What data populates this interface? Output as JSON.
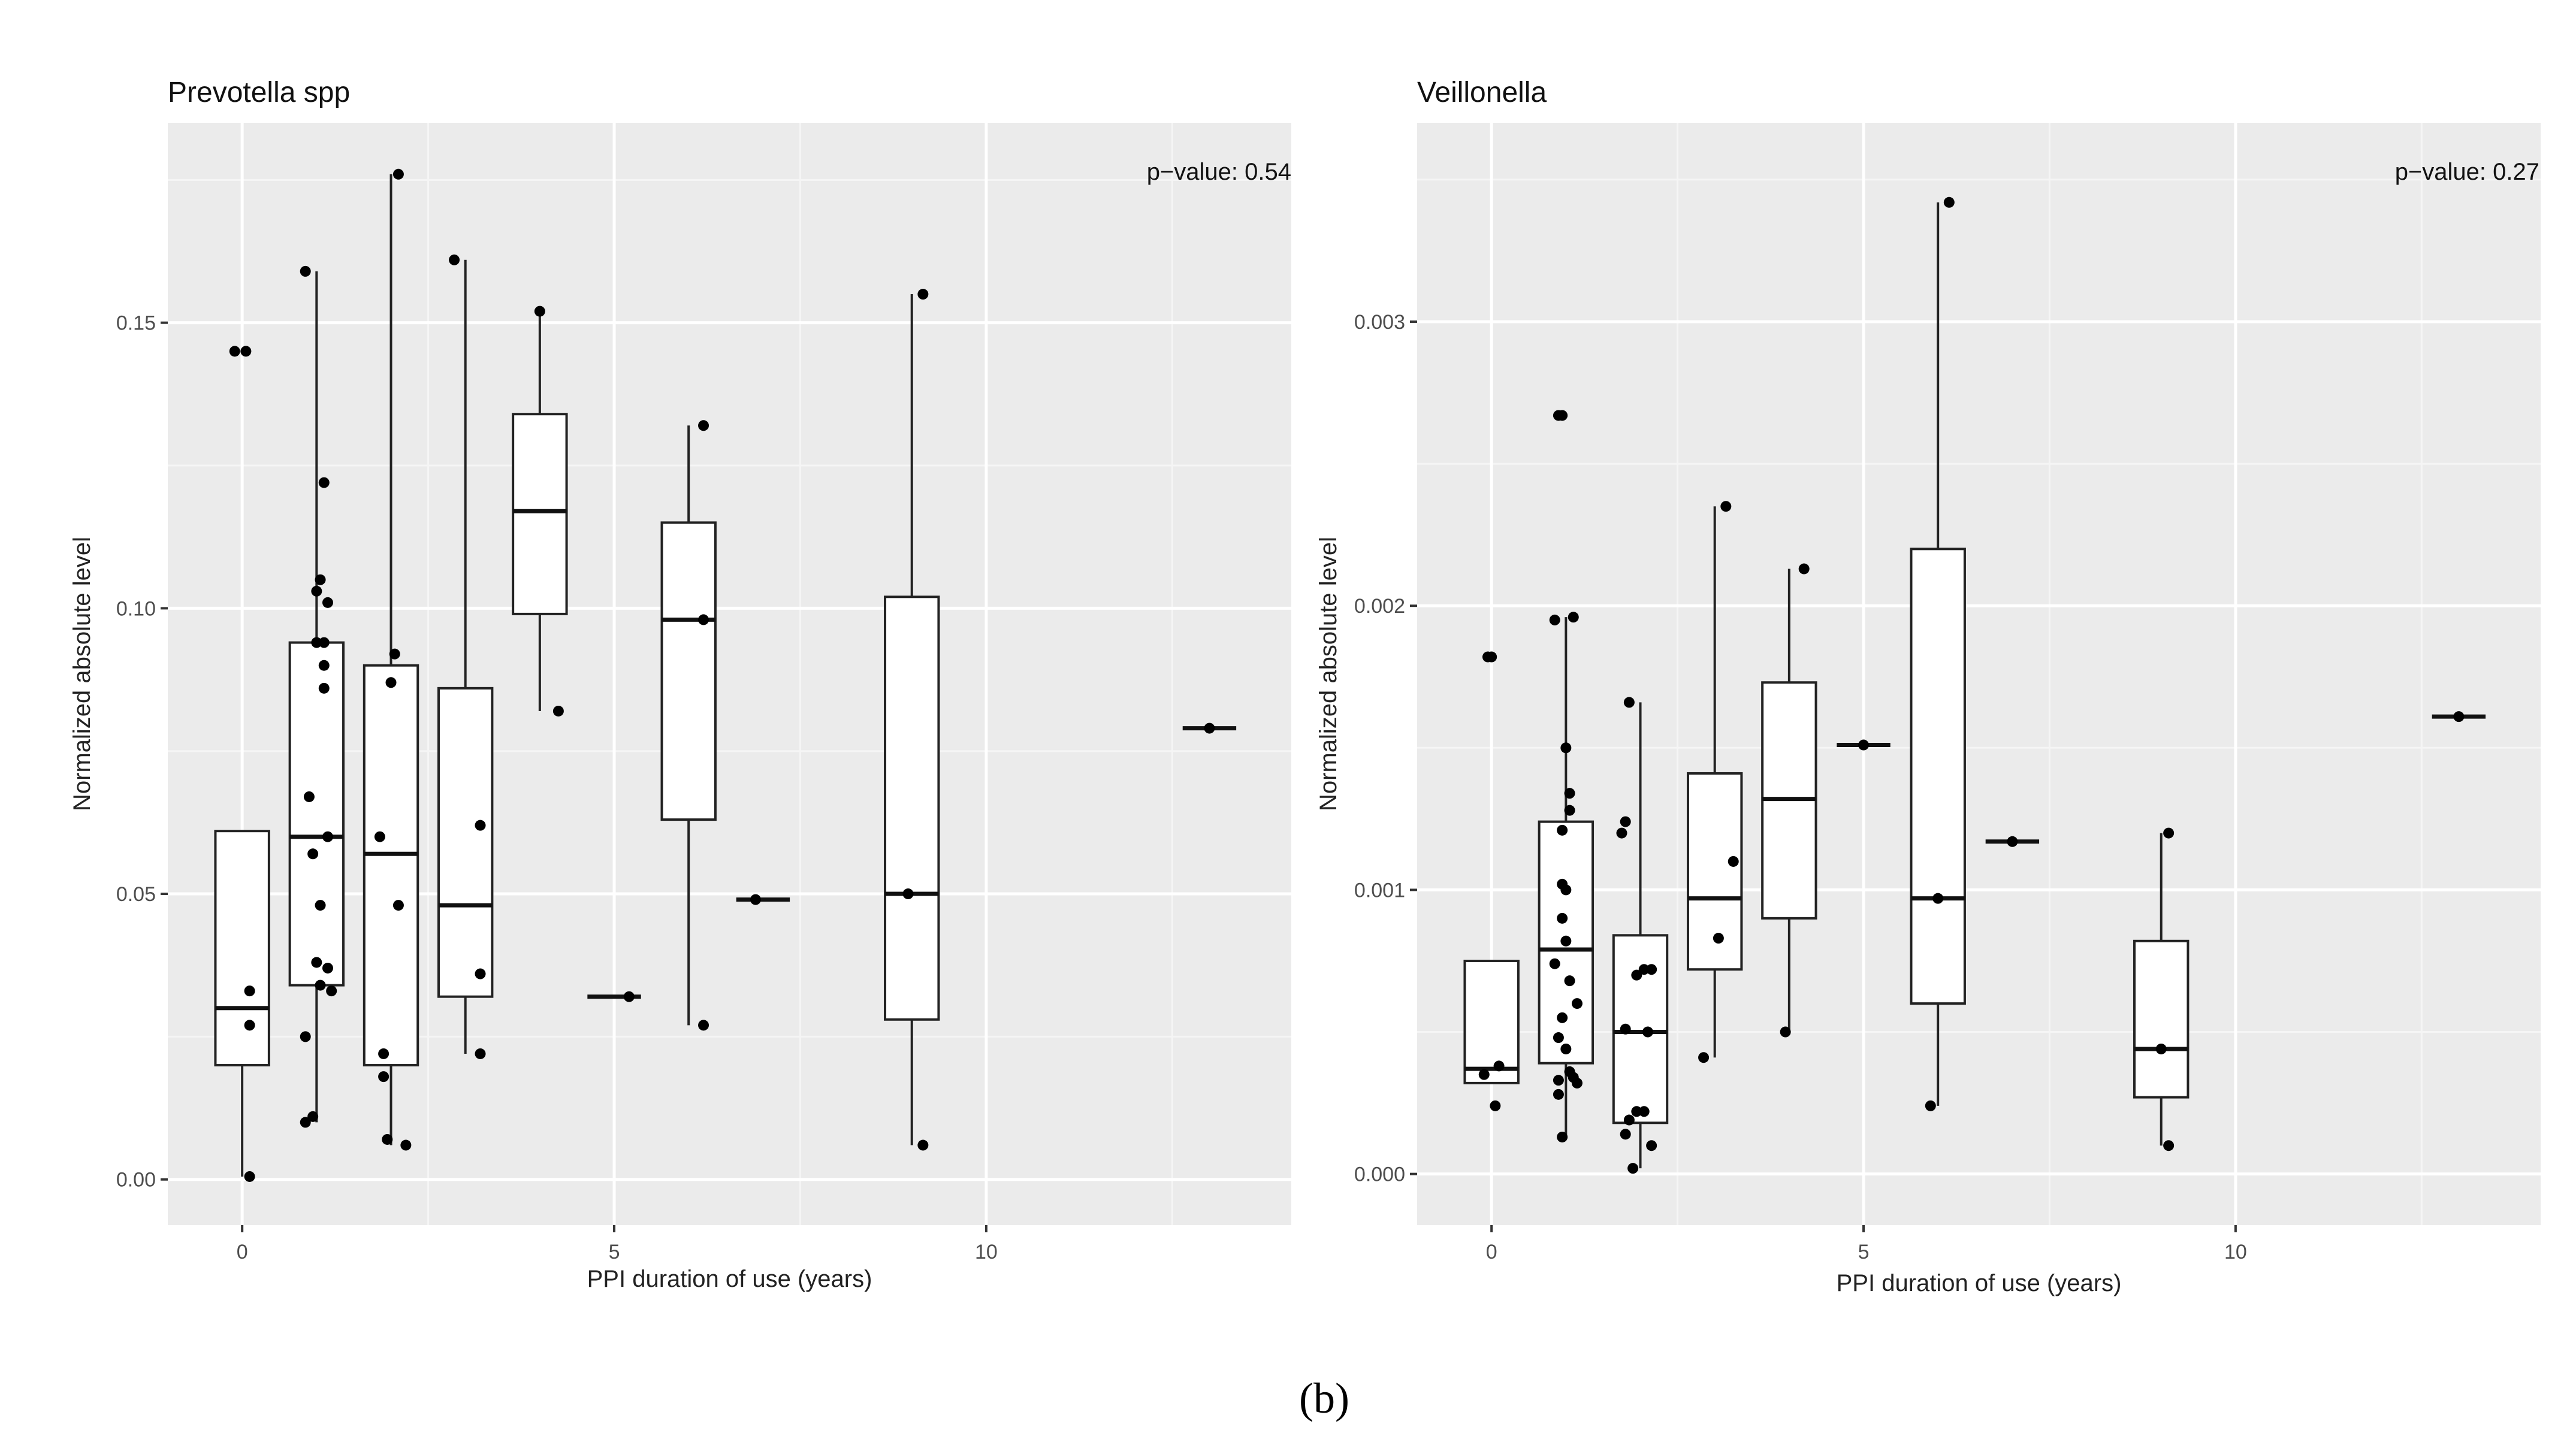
{
  "caption": "(b)",
  "chart_data": [
    {
      "type": "box",
      "title": "Prevotella spp",
      "xlabel": "PPI duration of use (years)",
      "ylabel": "Normalized absolute level",
      "annotation": "p−value:  0.54",
      "xlim": [
        -1,
        14.1
      ],
      "ylim": [
        -0.008,
        0.185
      ],
      "x_ticks": [
        0,
        5,
        10
      ],
      "x_tick_labels": [
        "0",
        "5",
        "10"
      ],
      "y_ticks": [
        0,
        0.05,
        0.1,
        0.15
      ],
      "y_tick_labels": [
        "0.00",
        "0.05",
        "0.10",
        "0.15"
      ],
      "boxes": [
        {
          "x": 0,
          "q1": 0.02,
          "median": 0.03,
          "q3": 0.061,
          "whisker_low": 0.0005,
          "whisker_high": 0.061
        },
        {
          "x": 1,
          "q1": 0.034,
          "median": 0.06,
          "q3": 0.094,
          "whisker_low": 0.01,
          "whisker_high": 0.159
        },
        {
          "x": 2,
          "q1": 0.02,
          "median": 0.057,
          "q3": 0.09,
          "whisker_low": 0.006,
          "whisker_high": 0.176
        },
        {
          "x": 3,
          "q1": 0.032,
          "median": 0.048,
          "q3": 0.086,
          "whisker_low": 0.022,
          "whisker_high": 0.161
        },
        {
          "x": 4,
          "q1": 0.099,
          "median": 0.117,
          "q3": 0.134,
          "whisker_low": 0.082,
          "whisker_high": 0.152
        },
        {
          "x": 5,
          "q1": 0.032,
          "median": 0.032,
          "q3": 0.032,
          "whisker_low": 0.032,
          "whisker_high": 0.032
        },
        {
          "x": 6,
          "q1": 0.063,
          "median": 0.098,
          "q3": 0.115,
          "whisker_low": 0.027,
          "whisker_high": 0.132
        },
        {
          "x": 7,
          "q1": 0.049,
          "median": 0.049,
          "q3": 0.049,
          "whisker_low": 0.049,
          "whisker_high": 0.049
        },
        {
          "x": 9,
          "q1": 0.028,
          "median": 0.05,
          "q3": 0.102,
          "whisker_low": 0.006,
          "whisker_high": 0.155
        },
        {
          "x": 13,
          "q1": 0.079,
          "median": 0.079,
          "q3": 0.079,
          "whisker_low": 0.079,
          "whisker_high": 0.079
        }
      ],
      "points": [
        [
          -0.1,
          0.145
        ],
        [
          0.05,
          0.145
        ],
        [
          0.1,
          0.033
        ],
        [
          0.1,
          0.027
        ],
        [
          0.1,
          0.0005
        ],
        [
          0.85,
          0.159
        ],
        [
          0.85,
          0.025
        ],
        [
          0.85,
          0.01
        ],
        [
          0.9,
          0.067
        ],
        [
          0.95,
          0.057
        ],
        [
          0.95,
          0.011
        ],
        [
          1.0,
          0.103
        ],
        [
          1.0,
          0.094
        ],
        [
          1.0,
          0.038
        ],
        [
          1.05,
          0.105
        ],
        [
          1.05,
          0.048
        ],
        [
          1.05,
          0.034
        ],
        [
          1.1,
          0.122
        ],
        [
          1.1,
          0.094
        ],
        [
          1.1,
          0.09
        ],
        [
          1.1,
          0.086
        ],
        [
          1.15,
          0.101
        ],
        [
          1.15,
          0.037
        ],
        [
          1.15,
          0.06
        ],
        [
          1.2,
          0.033
        ],
        [
          1.85,
          0.06
        ],
        [
          1.9,
          0.022
        ],
        [
          1.9,
          0.018
        ],
        [
          1.95,
          0.007
        ],
        [
          2.0,
          0.087
        ],
        [
          2.05,
          0.092
        ],
        [
          2.1,
          0.176
        ],
        [
          2.1,
          0.048
        ],
        [
          2.2,
          0.006
        ],
        [
          2.85,
          0.161
        ],
        [
          3.2,
          0.062
        ],
        [
          3.2,
          0.036
        ],
        [
          3.2,
          0.022
        ],
        [
          4.0,
          0.152
        ],
        [
          4.25,
          0.082
        ],
        [
          5.2,
          0.032
        ],
        [
          6.2,
          0.132
        ],
        [
          6.2,
          0.098
        ],
        [
          6.2,
          0.027
        ],
        [
          6.9,
          0.049
        ],
        [
          8.95,
          0.05
        ],
        [
          9.15,
          0.155
        ],
        [
          9.15,
          0.006
        ],
        [
          13.0,
          0.079
        ]
      ]
    },
    {
      "type": "box",
      "title": "Veillonella",
      "xlabel": "PPI duration of use (years)",
      "ylabel": "Normalized absolute level",
      "annotation": "p−value:  0.27",
      "xlim": [
        -1,
        14.1
      ],
      "ylim": [
        -0.00018,
        0.0037
      ],
      "x_ticks": [
        0,
        5,
        10
      ],
      "x_tick_labels": [
        "0",
        "5",
        "10"
      ],
      "y_ticks": [
        0,
        0.001,
        0.002,
        0.003
      ],
      "y_tick_labels": [
        "0.000",
        "0.001",
        "0.002",
        "0.003"
      ],
      "boxes": [
        {
          "x": 0,
          "q1": 0.00032,
          "median": 0.00037,
          "q3": 0.00075,
          "whisker_low": 0.00032,
          "whisker_high": 0.00075
        },
        {
          "x": 1,
          "q1": 0.00039,
          "median": 0.00079,
          "q3": 0.00124,
          "whisker_low": 0.00013,
          "whisker_high": 0.00196
        },
        {
          "x": 2,
          "q1": 0.00018,
          "median": 0.0005,
          "q3": 0.00084,
          "whisker_low": 2e-05,
          "whisker_high": 0.00166
        },
        {
          "x": 3,
          "q1": 0.00072,
          "median": 0.00097,
          "q3": 0.00141,
          "whisker_low": 0.00041,
          "whisker_high": 0.00235
        },
        {
          "x": 4,
          "q1": 0.0009,
          "median": 0.00132,
          "q3": 0.00173,
          "whisker_low": 0.0005,
          "whisker_high": 0.00213
        },
        {
          "x": 5,
          "q1": 0.00151,
          "median": 0.00151,
          "q3": 0.00151,
          "whisker_low": 0.00151,
          "whisker_high": 0.00151
        },
        {
          "x": 6,
          "q1": 0.0006,
          "median": 0.00097,
          "q3": 0.0022,
          "whisker_low": 0.00024,
          "whisker_high": 0.00342
        },
        {
          "x": 7,
          "q1": 0.00117,
          "median": 0.00117,
          "q3": 0.00117,
          "whisker_low": 0.00117,
          "whisker_high": 0.00117
        },
        {
          "x": 9,
          "q1": 0.00027,
          "median": 0.00044,
          "q3": 0.00082,
          "whisker_low": 0.0001,
          "whisker_high": 0.0012
        },
        {
          "x": 13,
          "q1": 0.00161,
          "median": 0.00161,
          "q3": 0.00161,
          "whisker_low": 0.00161,
          "whisker_high": 0.00161
        }
      ],
      "points": [
        [
          -0.05,
          0.00182
        ],
        [
          0.0,
          0.00182
        ],
        [
          -0.1,
          0.00035
        ],
        [
          0.1,
          0.00038
        ],
        [
          0.05,
          0.00024
        ],
        [
          0.85,
          0.00195
        ],
        [
          0.9,
          0.00267
        ],
        [
          0.95,
          0.00267
        ],
        [
          1.1,
          0.00196
        ],
        [
          0.95,
          0.00121
        ],
        [
          1.0,
          0.0015
        ],
        [
          1.05,
          0.00134
        ],
        [
          1.05,
          0.00128
        ],
        [
          0.95,
          0.00102
        ],
        [
          1.0,
          0.001
        ],
        [
          0.95,
          0.0009
        ],
        [
          1.0,
          0.00082
        ],
        [
          0.85,
          0.00074
        ],
        [
          1.05,
          0.00068
        ],
        [
          1.15,
          0.0006
        ],
        [
          0.95,
          0.00055
        ],
        [
          0.9,
          0.00048
        ],
        [
          1.0,
          0.00044
        ],
        [
          1.05,
          0.00036
        ],
        [
          0.9,
          0.00033
        ],
        [
          1.1,
          0.00034
        ],
        [
          1.15,
          0.00032
        ],
        [
          0.9,
          0.00028
        ],
        [
          0.95,
          0.00013
        ],
        [
          1.85,
          0.00166
        ],
        [
          1.8,
          0.00124
        ],
        [
          1.75,
          0.0012
        ],
        [
          2.05,
          0.00072
        ],
        [
          2.15,
          0.00072
        ],
        [
          1.95,
          0.0007
        ],
        [
          1.8,
          0.00051
        ],
        [
          2.1,
          0.0005
        ],
        [
          1.85,
          0.00019
        ],
        [
          1.95,
          0.00022
        ],
        [
          2.05,
          0.00022
        ],
        [
          1.8,
          0.00014
        ],
        [
          2.15,
          0.0001
        ],
        [
          1.9,
          2e-05
        ],
        [
          3.15,
          0.00235
        ],
        [
          3.25,
          0.0011
        ],
        [
          3.05,
          0.00083
        ],
        [
          2.85,
          0.00041
        ],
        [
          4.2,
          0.00213
        ],
        [
          3.95,
          0.0005
        ],
        [
          5.0,
          0.00151
        ],
        [
          6.15,
          0.00342
        ],
        [
          6.0,
          0.00097
        ],
        [
          5.9,
          0.00024
        ],
        [
          7.0,
          0.00117
        ],
        [
          9.0,
          0.00044
        ],
        [
          9.1,
          0.0012
        ],
        [
          9.1,
          0.0001
        ],
        [
          13.0,
          0.00161
        ]
      ]
    }
  ]
}
